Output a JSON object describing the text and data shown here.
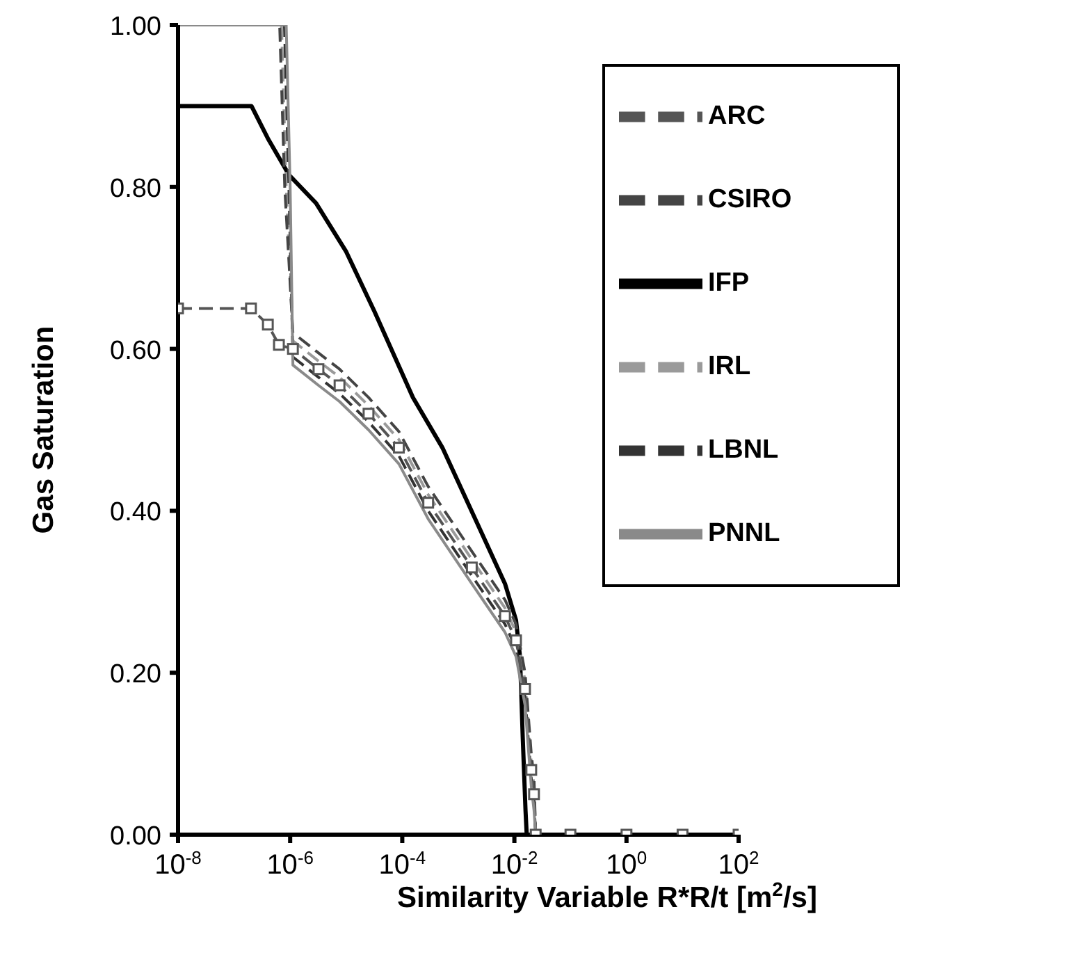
{
  "chart_data": {
    "type": "line",
    "xlabel": "Similarity Variable R*R/t [m$^{2}$/s]",
    "ylabel": "Gas Saturation",
    "log": "x",
    "legend": "top right",
    "xlim": [
      1e-08,
      100
    ],
    "ylim": [
      0,
      1
    ],
    "xticks": [
      {
        "value": 1e-08,
        "label": "10$^{-8}$"
      },
      {
        "value": 1e-06,
        "label": "10$^{-6}$"
      },
      {
        "value": 0.0001,
        "label": "10$^{-4}$"
      },
      {
        "value": 0.01,
        "label": "10$^{-2}$"
      },
      {
        "value": 1,
        "label": "10$^{0}$"
      },
      {
        "value": 100,
        "label": "10$^{2}$"
      }
    ],
    "yticks": [
      {
        "value": 0,
        "label": "0.00"
      },
      {
        "value": 0.2,
        "label": "0.20"
      },
      {
        "value": 0.4,
        "label": "0.40"
      },
      {
        "value": 0.6,
        "label": "0.60"
      },
      {
        "value": 0.8,
        "label": "0.80"
      },
      {
        "value": 1,
        "label": "1.00"
      }
    ],
    "series": [
      {
        "name": "IFP",
        "color": "#000000",
        "line_style": "solid",
        "x": [
          1e-08,
          2.04e-07,
          4e-07,
          9.5e-07,
          2.9e-06,
          1e-05,
          3.2e-05,
          0.000155,
          0.00052,
          0.002,
          0.0068,
          0.0107,
          0.0126,
          0.0141,
          0.0158,
          0.0166,
          100
        ],
        "values": [
          0.9,
          0.9,
          0.86,
          0.815,
          0.78,
          0.72,
          0.646,
          0.54,
          0.478,
          0.39,
          0.31,
          0.265,
          0.22,
          0.12,
          0.03,
          0,
          0
        ]
      },
      {
        "name": "IRL",
        "color": "#9a9a9a",
        "line_style": "dashed",
        "x": [
          1e-08,
          7e-07,
          8.5e-07,
          1.12e-06,
          3.2e-06,
          7.6e-06,
          2.5e-05,
          8.7e-05,
          0.00029,
          0.00174,
          0.0068,
          0.0107,
          0.0155,
          0.02,
          0.0224,
          0.024,
          100
        ],
        "values": [
          1,
          1,
          0.8,
          0.61,
          0.585,
          0.565,
          0.53,
          0.488,
          0.42,
          0.34,
          0.28,
          0.25,
          0.19,
          0.09,
          0.06,
          0,
          0
        ]
      },
      {
        "name": "LBNL",
        "color": "#333333",
        "line_style": "dashed",
        "x": [
          1e-08,
          7.9e-07,
          9.5e-07,
          1.12e-06,
          3.2e-06,
          7.6e-06,
          2.5e-05,
          8.7e-05,
          0.00029,
          0.00174,
          0.0068,
          0.0107,
          0.0155,
          0.02,
          0.0224,
          0.024,
          100
        ],
        "values": [
          1,
          1,
          0.8,
          0.59,
          0.565,
          0.545,
          0.51,
          0.468,
          0.4,
          0.32,
          0.26,
          0.23,
          0.17,
          0.07,
          0.04,
          0,
          0
        ]
      },
      {
        "name": "CSIRO",
        "color": "#444444",
        "line_style": "dashed",
        "x": [
          1e-08,
          6.5e-07,
          8e-07,
          1.12e-06,
          3.2e-06,
          7.6e-06,
          2.5e-05,
          8.7e-05,
          0.00029,
          0.00174,
          0.0068,
          0.0107,
          0.0155,
          0.02,
          0.0224,
          0.024,
          100
        ],
        "values": [
          1,
          1,
          0.8,
          0.62,
          0.595,
          0.575,
          0.54,
          0.498,
          0.43,
          0.35,
          0.29,
          0.26,
          0.2,
          0.1,
          0.07,
          0,
          0
        ]
      },
      {
        "name": "ARC",
        "color": "#555555",
        "line_style": "dashed",
        "marker": "square",
        "x": [
          1e-08,
          2e-07,
          4e-07,
          6.3e-07,
          1.12e-06,
          3.2e-06,
          7.6e-06,
          2.5e-05,
          8.7e-05,
          0.00029,
          0.00174,
          0.0068,
          0.0107,
          0.0155,
          0.02,
          0.0224,
          0.024,
          0.1,
          1,
          10,
          100
        ],
        "values": [
          0.65,
          0.65,
          0.63,
          0.605,
          0.6,
          0.575,
          0.555,
          0.52,
          0.478,
          0.41,
          0.33,
          0.27,
          0.24,
          0.18,
          0.08,
          0.05,
          0,
          0,
          0,
          0,
          0
        ]
      },
      {
        "name": "PNNL",
        "color": "#8a8a8a",
        "line_style": "solid",
        "x": [
          1e-08,
          8.5e-07,
          1e-06,
          1.12e-06,
          3.2e-06,
          7.6e-06,
          2.5e-05,
          8.7e-05,
          0.00029,
          0.00174,
          0.0068,
          0.0107,
          0.0155,
          0.02,
          0.0224,
          0.024,
          100
        ],
        "values": [
          1,
          1,
          0.8,
          0.58,
          0.555,
          0.535,
          0.5,
          0.458,
          0.39,
          0.31,
          0.25,
          0.22,
          0.16,
          0.06,
          0.03,
          0,
          0
        ]
      }
    ]
  }
}
